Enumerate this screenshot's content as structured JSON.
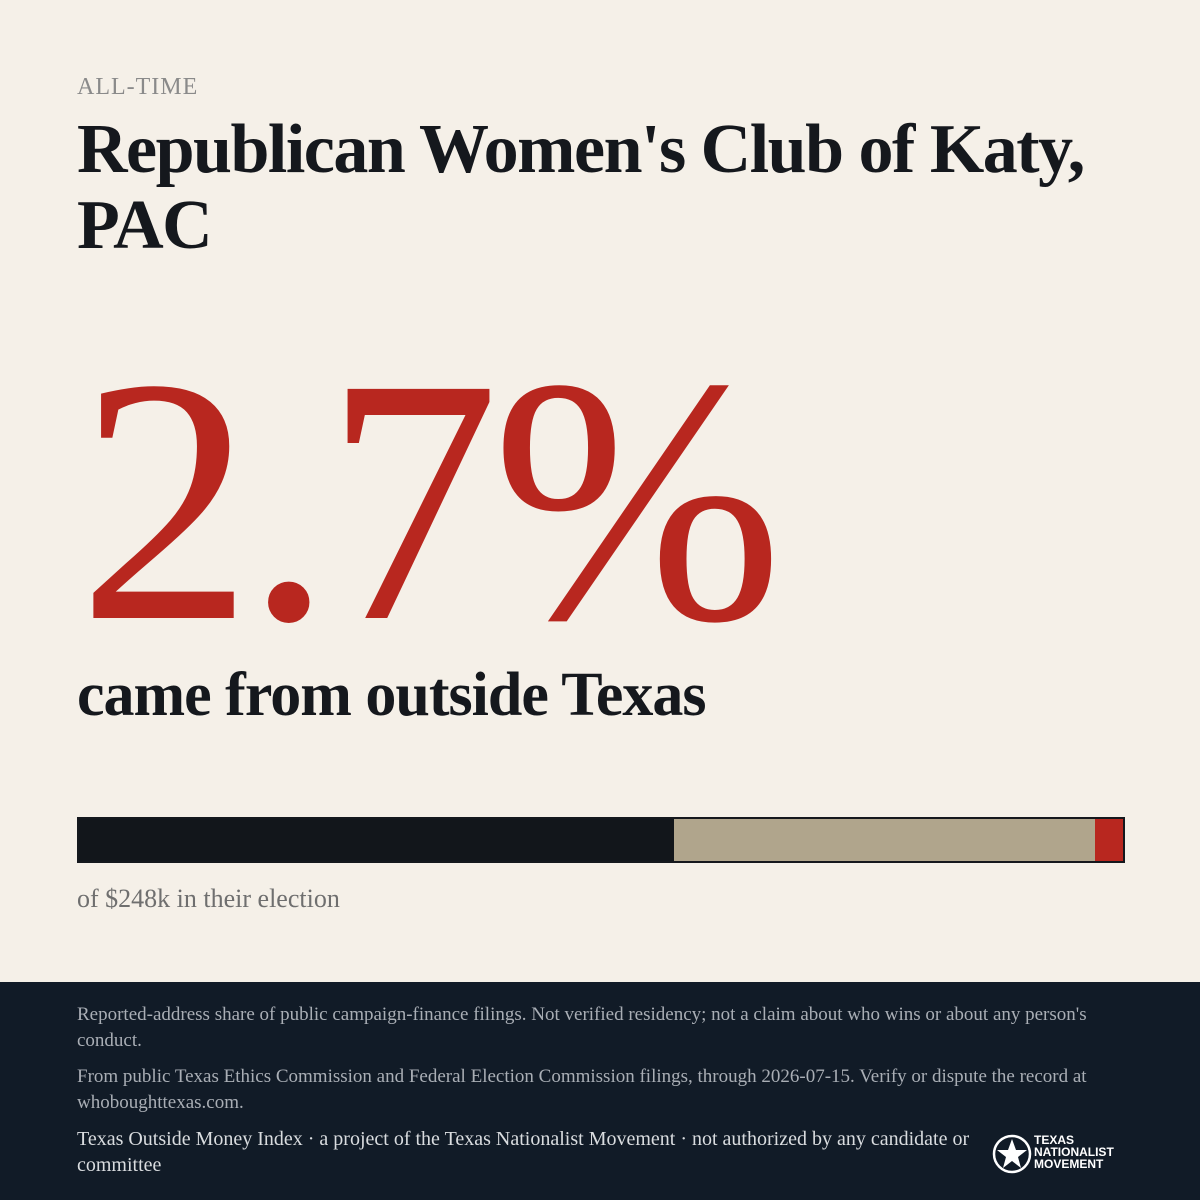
{
  "header": {
    "eyebrow": "ALL-TIME",
    "title": "Republican Women's Club of Katy, PAC"
  },
  "headline": {
    "figure": "2.7%",
    "caption": "came from outside Texas"
  },
  "bar": {
    "segments": [
      {
        "value": 57,
        "color": "#12161b"
      },
      {
        "value": 40.3,
        "color": "#b0a58c"
      },
      {
        "value": 2.7,
        "color": "#b8271f"
      }
    ],
    "note": "of $248k in their election"
  },
  "footer": {
    "disclaimer": "Reported-address share of public campaign-finance filings. Not verified residency; not a claim about who wins or about any person's conduct.",
    "source": "From public Texas Ethics Commission and Federal Election Commission filings, through 2026-07-15. Verify or dispute the record at whoboughttexas.com.",
    "credit": "Texas Outside Money Index · a project of the Texas Nationalist Movement · not authorized by any candidate or committee",
    "logo": [
      "TEXAS",
      "NATIONALIST",
      "MOVEMENT"
    ]
  }
}
